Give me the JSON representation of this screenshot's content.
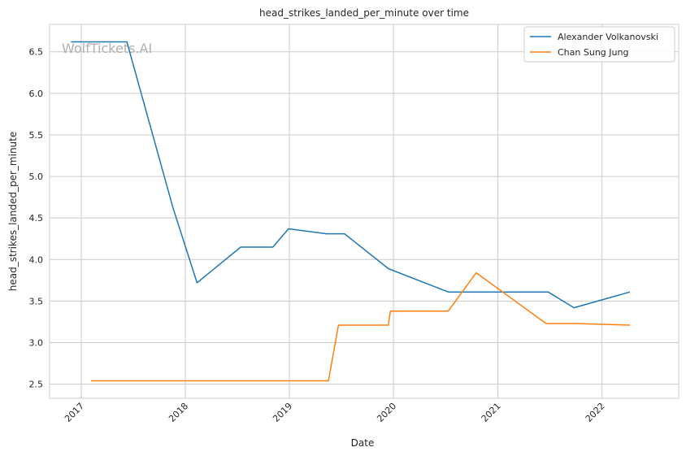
{
  "chart_data": {
    "type": "line",
    "title": "head_strikes_landed_per_minute over time",
    "xlabel": "Date",
    "ylabel": "head_strikes_landed_per_minute",
    "watermark": "WolfTickets.AI",
    "x_ticks": [
      "2017",
      "2018",
      "2019",
      "2020",
      "2021",
      "2022"
    ],
    "y_ticks": [
      "2.5",
      "3.0",
      "3.5",
      "4.0",
      "4.5",
      "5.0",
      "5.5",
      "6.0",
      "6.5"
    ],
    "xlim": [
      "2016-09-12",
      "2022-09-27"
    ],
    "ylim": [
      2.33,
      6.83
    ],
    "grid": true,
    "legend_position": "top-right",
    "series": [
      {
        "name": "Alexander Volkanovski",
        "color": "#1f77b4",
        "points": [
          [
            "2016-11-26",
            6.62
          ],
          [
            "2017-06-10",
            6.62
          ],
          [
            "2017-11-19",
            4.62
          ],
          [
            "2018-02-11",
            3.72
          ],
          [
            "2018-07-14",
            4.15
          ],
          [
            "2018-11-04",
            4.15
          ],
          [
            "2018-12-29",
            4.37
          ],
          [
            "2019-05-11",
            4.31
          ],
          [
            "2019-07-13",
            4.31
          ],
          [
            "2019-12-14",
            3.89
          ],
          [
            "2020-07-11",
            3.61
          ],
          [
            "2021-06-26",
            3.61
          ],
          [
            "2021-09-25",
            3.42
          ],
          [
            "2022-04-09",
            3.61
          ]
        ]
      },
      {
        "name": "Chan Sung Jung",
        "color": "#ff7f0e",
        "points": [
          [
            "2017-02-04",
            2.54
          ],
          [
            "2019-05-18",
            2.54
          ],
          [
            "2019-06-22",
            3.21
          ],
          [
            "2019-12-14",
            3.21
          ],
          [
            "2019-12-21",
            3.38
          ],
          [
            "2020-07-11",
            3.38
          ],
          [
            "2020-10-17",
            3.84
          ],
          [
            "2021-06-19",
            3.23
          ],
          [
            "2021-09-25",
            3.23
          ],
          [
            "2022-04-09",
            3.21
          ]
        ]
      }
    ]
  }
}
